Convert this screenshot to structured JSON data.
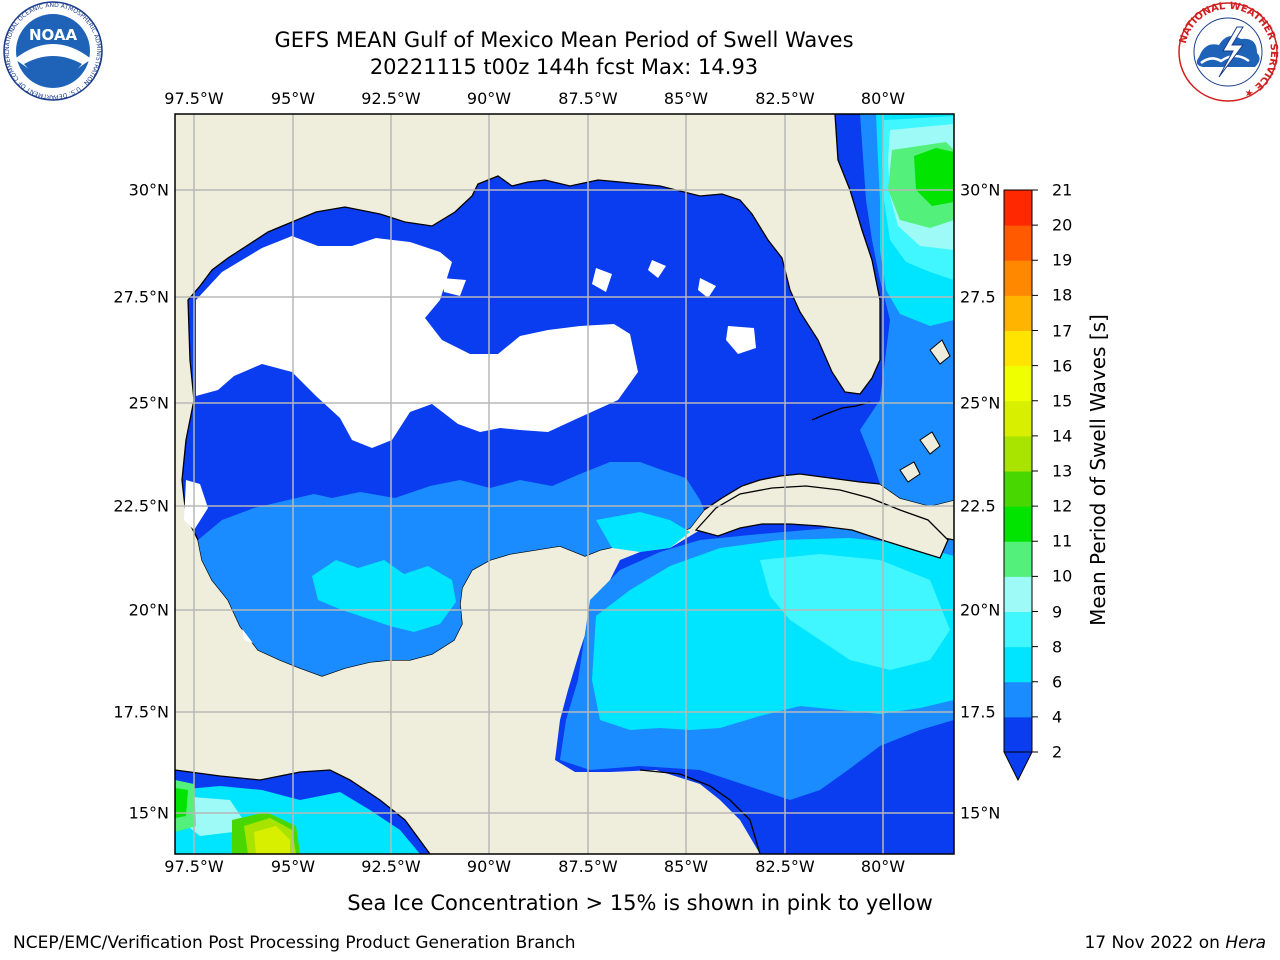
{
  "header": {
    "title_line1": "GEFS MEAN Gulf of Mexico Mean Period of Swell Waves",
    "title_line2": "20221115 t00z 144h fcst   Max: 14.93"
  },
  "axes": {
    "top_lon": [
      "97.5°W",
      "95°W",
      "92.5°W",
      "90°W",
      "87.5°W",
      "85°W",
      "82.5°W",
      "80°W"
    ],
    "bottom_lon": [
      "97.5°W",
      "95°W",
      "92.5°W",
      "90°W",
      "87.5°W",
      "85°W",
      "82.5°W",
      "80°W"
    ],
    "left_lat": [
      "30°N",
      "27.5°N",
      "25°N",
      "22.5°N",
      "20°N",
      "17.5°N",
      "15°N"
    ],
    "right_lat": [
      "30°N",
      "27.5",
      "25°N",
      "22.5",
      "20°N",
      "17.5",
      "15°N"
    ]
  },
  "colorbar": {
    "label": "Mean Period of Swell Waves [s]",
    "ticks": [
      "2",
      "4",
      "6",
      "8",
      "9",
      "10",
      "11",
      "12",
      "13",
      "14",
      "15",
      "16",
      "17",
      "18",
      "19",
      "20",
      "21"
    ],
    "colors": [
      "#0a3cf0",
      "#1a8cff",
      "#00e5ff",
      "#40f6ff",
      "#9dfaf6",
      "#54f07c",
      "#00e400",
      "#48d800",
      "#a8e400",
      "#d8f000",
      "#f0ff00",
      "#ffe400",
      "#ffb400",
      "#ff8800",
      "#ff5a00",
      "#ff2800"
    ]
  },
  "footer": {
    "subtitle": "Sea Ice Concentration > 15% is shown in pink to yellow",
    "left": "NCEP/EMC/Verification Post Processing Product Generation Branch",
    "date": "17 Nov 2022 on ",
    "system": "Hera"
  },
  "logos": {
    "noaa_text": "NOAA",
    "noaa_ring_text": "NATIONAL OCEANIC AND ATMOSPHERIC ADMINISTRATION · U.S. DEPARTMENT OF COMMERCE ·",
    "nws_ring_text": "NATIONAL WEATHER SERVICE ★"
  },
  "colors": {
    "land": "#efeedd",
    "no_data": "#ffffff",
    "grid": "#b8b8b8"
  }
}
